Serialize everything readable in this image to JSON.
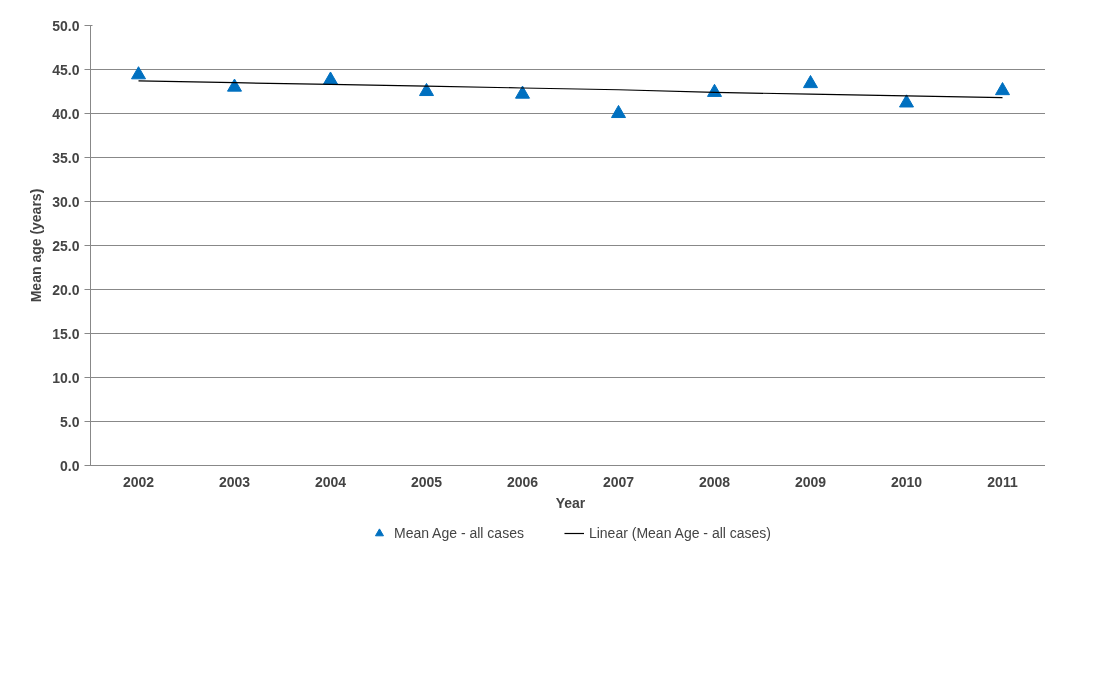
{
  "chart_data": {
    "type": "scatter",
    "xlabel": "Year",
    "ylabel": "Mean age (years)",
    "categories": [
      "2002",
      "2003",
      "2004",
      "2005",
      "2006",
      "2007",
      "2008",
      "2009",
      "2010",
      "2011"
    ],
    "series": [
      {
        "name": "Mean Age - all cases",
        "color": "#0070c0",
        "marker": "triangle",
        "values": [
          44.4,
          43.0,
          43.8,
          42.5,
          42.2,
          40.0,
          42.4,
          43.4,
          41.2,
          42.6
        ]
      },
      {
        "name": "Linear (Mean Age - all cases)",
        "type": "line",
        "color": "#000000",
        "line_style": "solid",
        "values": [
          43.7,
          43.5,
          43.3,
          43.1,
          42.9,
          42.7,
          42.4,
          42.2,
          42.0,
          41.8
        ]
      }
    ],
    "ylim": [
      0,
      50
    ],
    "yticks": [
      {
        "value": 0,
        "label": "0.0"
      },
      {
        "value": 5,
        "label": "5.0"
      },
      {
        "value": 10,
        "label": "10.0"
      },
      {
        "value": 15,
        "label": "15.0"
      },
      {
        "value": 20,
        "label": "20.0"
      },
      {
        "value": 25,
        "label": "25.0"
      },
      {
        "value": 30,
        "label": "30.0"
      },
      {
        "value": 35,
        "label": "35.0"
      },
      {
        "value": 40,
        "label": "40.0"
      },
      {
        "value": 45,
        "label": "45.0"
      },
      {
        "value": 50,
        "label": "50.0"
      }
    ],
    "grid": "y",
    "legend": "bottom"
  }
}
